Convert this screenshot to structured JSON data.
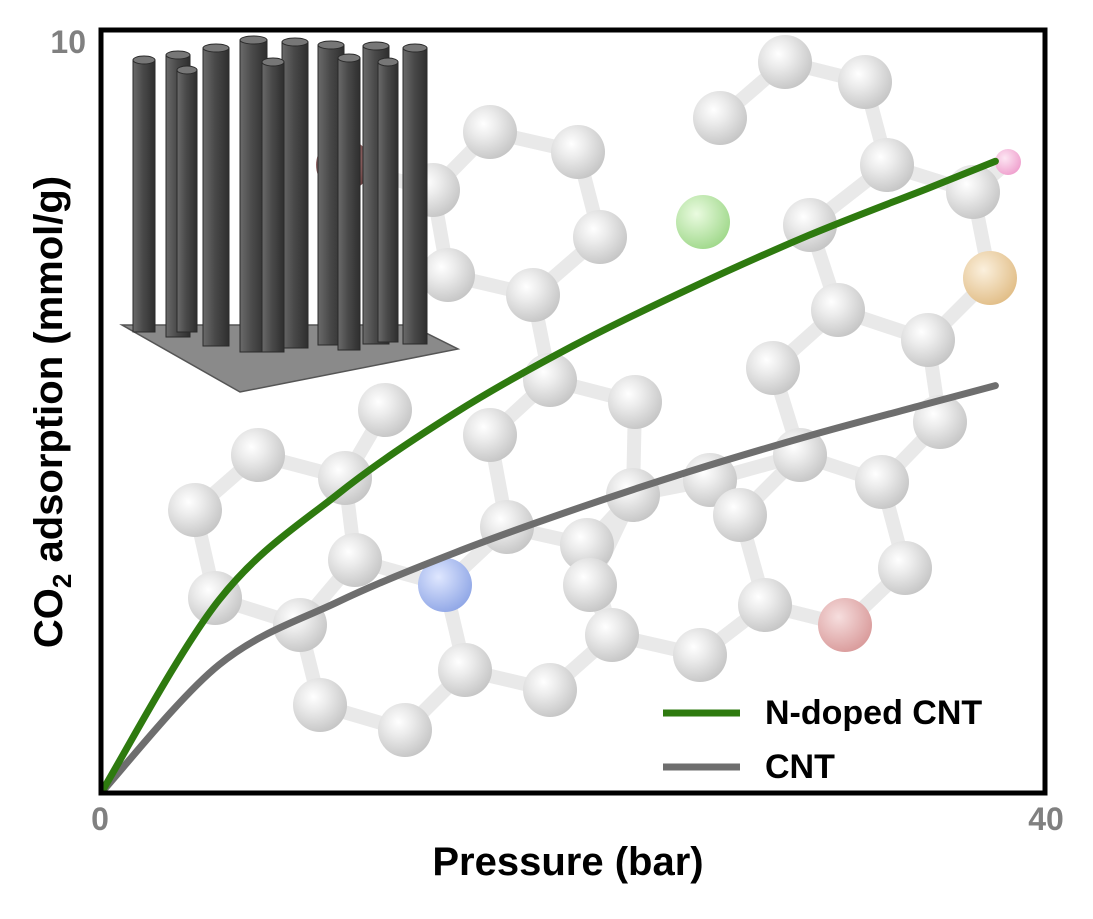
{
  "chart_data": {
    "type": "line",
    "xlabel": "Pressure (bar)",
    "ylabel_parts": [
      "CO",
      "2",
      " adsorption (mmol/g)"
    ],
    "xlim": [
      0,
      40
    ],
    "ylim": [
      0,
      10
    ],
    "xticks": [
      "0",
      "40"
    ],
    "yticks": [
      "10"
    ],
    "grid": false,
    "legend_position": "bottom-right",
    "series": [
      {
        "name": "N-doped CNT",
        "color": "#2e7a0f",
        "x": [
          0,
          5,
          10,
          15,
          20,
          25,
          30,
          35,
          37.9
        ],
        "y": [
          0,
          2.53,
          3.91,
          4.98,
          5.86,
          6.62,
          7.31,
          7.92,
          8.28
        ]
      },
      {
        "name": "CNT",
        "color": "#6e6e6e",
        "x": [
          0,
          5,
          10,
          15,
          20,
          25,
          30,
          35,
          37.9
        ],
        "y": [
          0,
          1.68,
          2.5,
          3.15,
          3.71,
          4.22,
          4.68,
          5.1,
          5.34
        ]
      }
    ],
    "decorations": [
      "graphene-lattice-illustration",
      "vertical-cnt-array-illustration"
    ]
  }
}
